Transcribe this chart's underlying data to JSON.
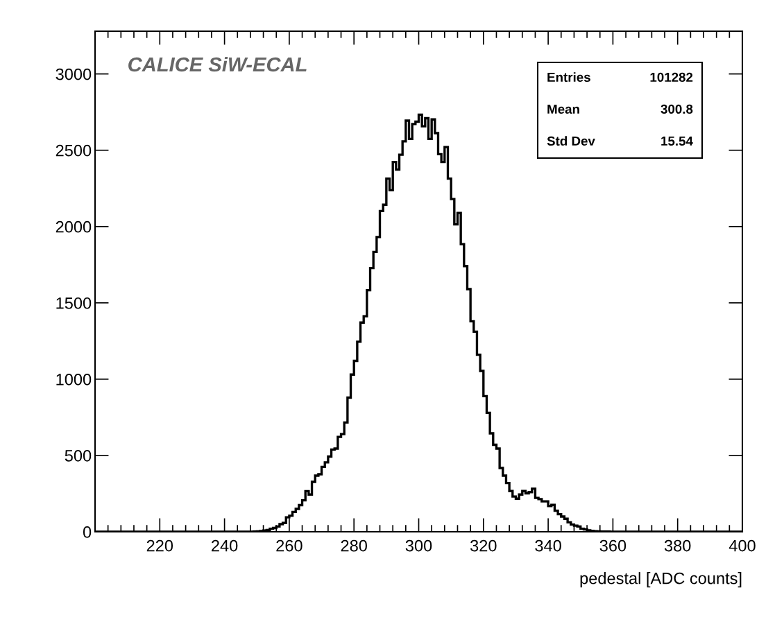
{
  "chart_data": {
    "type": "histogram",
    "xlabel": "pedestal [ADC counts]",
    "annotations": [
      "CALICE SiW-ECAL",
      "Entries",
      "101282",
      "Mean",
      "300.8",
      "Std Dev",
      "15.54"
    ],
    "bins": [
      200,
      249,
      250,
      251,
      252,
      253,
      254,
      255,
      256,
      257,
      258,
      259,
      260,
      261,
      262,
      263,
      264,
      265,
      266,
      267,
      268,
      269,
      270,
      271,
      272,
      273,
      274,
      275,
      276,
      277,
      278,
      279,
      280,
      281,
      282,
      283,
      284,
      285,
      286,
      287,
      288,
      289,
      290,
      291,
      292,
      293,
      294,
      295,
      296,
      297,
      298,
      299,
      300,
      301,
      302,
      303,
      304,
      305,
      306,
      307,
      308,
      309,
      310,
      311,
      312,
      313,
      314,
      315,
      316,
      317,
      318,
      319,
      320,
      321,
      322,
      323,
      324,
      325,
      326,
      327,
      328,
      329,
      330,
      331,
      332,
      333,
      334,
      335,
      336,
      337,
      338,
      339,
      340,
      341,
      342,
      343,
      344,
      345,
      346,
      347,
      348,
      349,
      350,
      351,
      352,
      353,
      354,
      355,
      356,
      357,
      358,
      359,
      360,
      400
    ],
    "values": [
      0,
      1,
      3,
      5,
      8,
      12,
      20,
      25,
      35,
      50,
      58,
      95,
      105,
      130,
      150,
      175,
      206,
      266,
      244,
      327,
      368,
      377,
      425,
      455,
      493,
      539,
      545,
      622,
      640,
      716,
      879,
      1030,
      1120,
      1245,
      1371,
      1412,
      1583,
      1728,
      1834,
      1931,
      2102,
      2143,
      2314,
      2238,
      2423,
      2373,
      2471,
      2558,
      2694,
      2574,
      2672,
      2687,
      2733,
      2657,
      2710,
      2574,
      2702,
      2612,
      2474,
      2423,
      2521,
      2314,
      2180,
      2014,
      2089,
      1885,
      1741,
      1590,
      1379,
      1311,
      1160,
      1054,
      889,
      780,
      645,
      570,
      545,
      418,
      368,
      320,
      267,
      231,
      217,
      244,
      267,
      252,
      260,
      282,
      222,
      214,
      199,
      199,
      169,
      176,
      138,
      115,
      100,
      85,
      62,
      47,
      40,
      35,
      20,
      15,
      9,
      6,
      4,
      3,
      2,
      1,
      1,
      0,
      0
    ],
    "color": "#000000",
    "xlim": [
      200,
      400
    ],
    "xticks": [
      220,
      240,
      260,
      280,
      300,
      320,
      340,
      360,
      380,
      400
    ],
    "ylim": [
      0,
      3280
    ],
    "yticks": [
      0,
      500,
      1000,
      1500,
      2000,
      2500,
      3000
    ],
    "grid": false,
    "legend": false
  }
}
